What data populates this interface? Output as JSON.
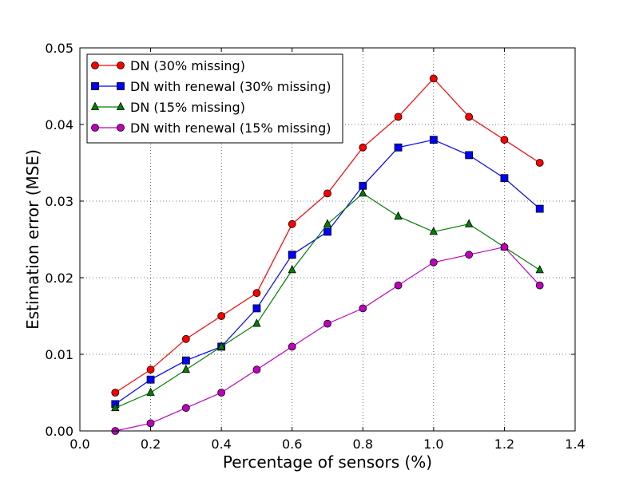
{
  "chart_data": {
    "type": "line",
    "title": "",
    "xlabel": "Percentage of sensors (%)",
    "ylabel": "Estimation error (MSE)",
    "xlim": [
      0.0,
      1.4
    ],
    "ylim": [
      0.0,
      0.05
    ],
    "xticks": [
      0.0,
      0.2,
      0.4,
      0.6,
      0.8,
      1.0,
      1.2,
      1.4
    ],
    "xtick_labels": [
      "0.0",
      "0.2",
      "0.4",
      "0.6",
      "0.8",
      "1.0",
      "1.2",
      "1.4"
    ],
    "yticks": [
      0.0,
      0.01,
      0.02,
      0.03,
      0.04,
      0.05
    ],
    "ytick_labels": [
      "0.00",
      "0.01",
      "0.02",
      "0.03",
      "0.04",
      "0.05"
    ],
    "grid": true,
    "legend_position": "top-left",
    "x": [
      0.1,
      0.2,
      0.3,
      0.4,
      0.5,
      0.6,
      0.7,
      0.8,
      0.9,
      1.0,
      1.1,
      1.2,
      1.3
    ],
    "series": [
      {
        "name": "DN (30% missing)",
        "color": "#ff0000",
        "marker": "circle",
        "values": [
          0.005,
          0.008,
          0.012,
          0.015,
          0.018,
          0.027,
          0.031,
          0.037,
          0.041,
          0.046,
          0.041,
          0.038,
          0.035
        ]
      },
      {
        "name": "DN with renewal (30% missing)",
        "color": "#0000ff",
        "marker": "square",
        "values": [
          0.0035,
          0.0067,
          0.0092,
          0.011,
          0.016,
          0.023,
          0.026,
          0.032,
          0.037,
          0.038,
          0.036,
          0.033,
          0.029
        ]
      },
      {
        "name": "DN (15% missing)",
        "color": "#007f00",
        "marker": "triangle",
        "values": [
          0.003,
          0.005,
          0.008,
          0.011,
          0.014,
          0.021,
          0.027,
          0.031,
          0.028,
          0.026,
          0.027,
          0.024,
          0.021
        ]
      },
      {
        "name": "DN with renewal (15% missing)",
        "color": "#bf00bf",
        "marker": "circle",
        "values": [
          0.0,
          0.001,
          0.003,
          0.005,
          0.008,
          0.011,
          0.014,
          0.016,
          0.019,
          0.022,
          0.023,
          0.024,
          0.019
        ]
      }
    ]
  }
}
